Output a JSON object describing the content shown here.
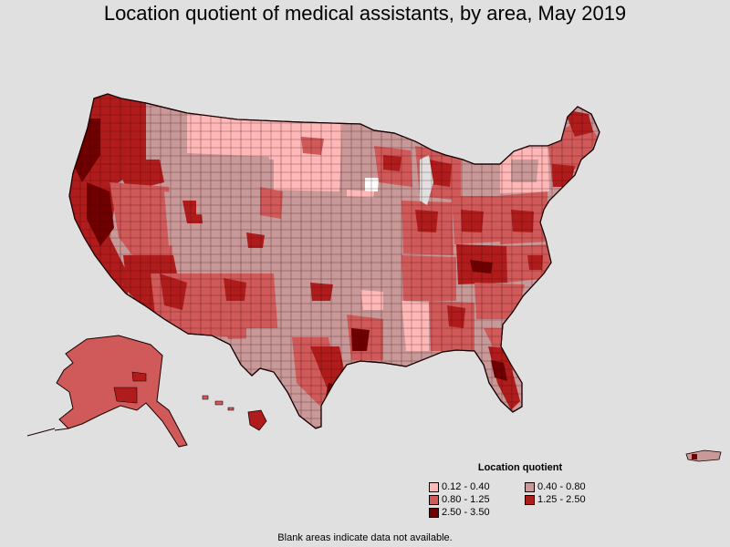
{
  "title": "Location quotient of medical assistants, by area, May 2019",
  "legend": {
    "title": "Location quotient",
    "items": [
      {
        "label": "0.12 - 0.40",
        "color": "#ffb8b8"
      },
      {
        "label": "0.40 - 0.80",
        "color": "#c79999"
      },
      {
        "label": "0.80 - 1.25",
        "color": "#d05a5a"
      },
      {
        "label": "1.25 - 2.50",
        "color": "#b01c1c"
      },
      {
        "label": "2.50 - 3.50",
        "color": "#6e0000"
      }
    ]
  },
  "footnote": "Blank areas indicate data not available.",
  "colors": {
    "background": "#e0e0e0",
    "border": "#2a0000"
  }
}
